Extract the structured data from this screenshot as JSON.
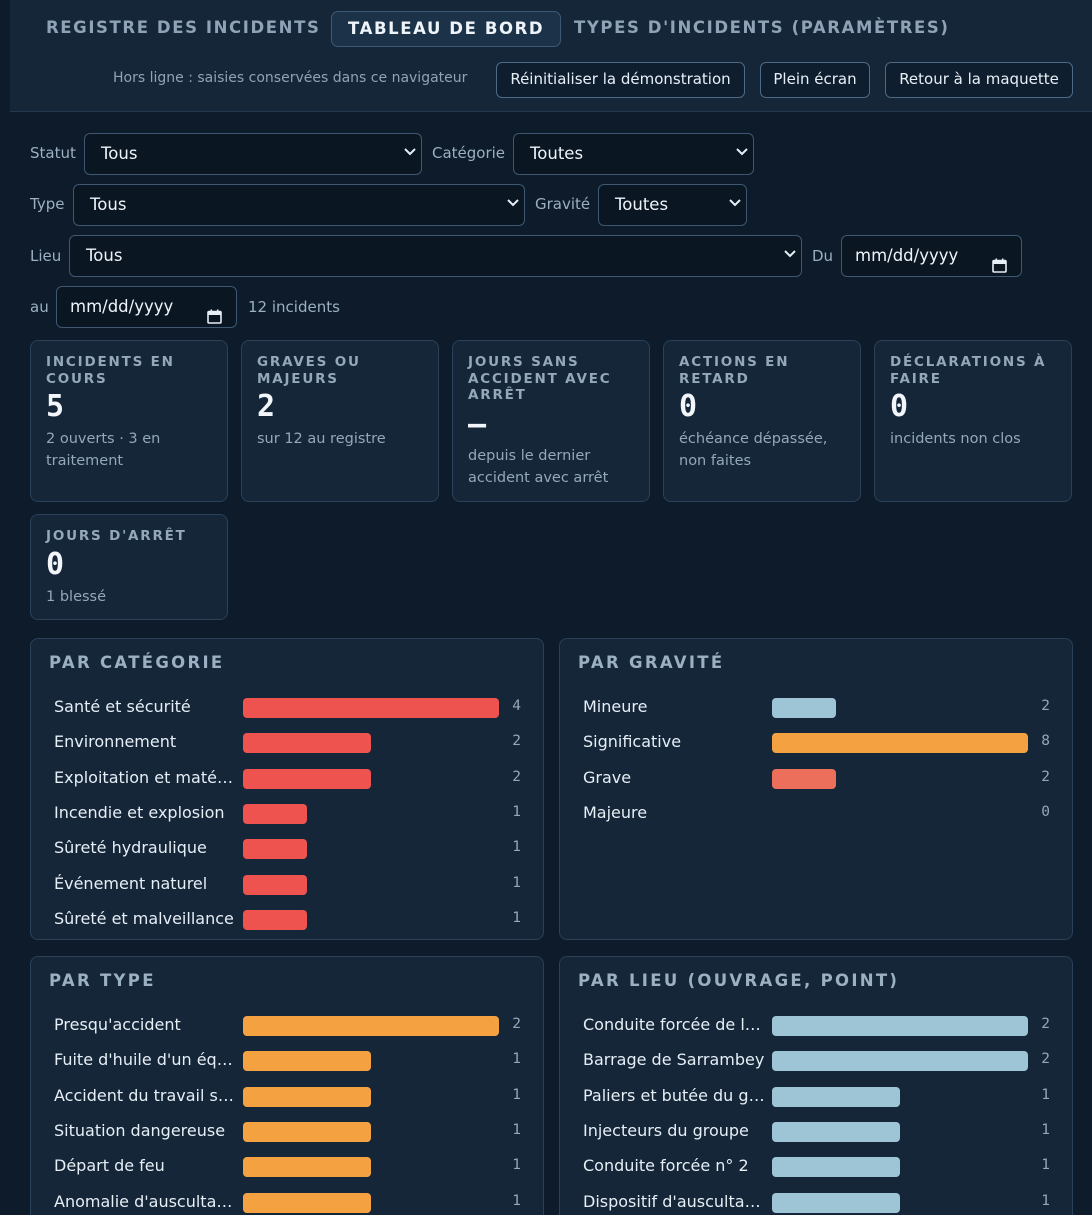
{
  "nav": {
    "tabs": [
      {
        "label": "REGISTRE DES INCIDENTS"
      },
      {
        "label": "TABLEAU DE BORD"
      },
      {
        "label": "TYPES D'INCIDENTS (PARAMÈTRES)"
      }
    ],
    "offline_note": "Hors ligne : saisies conservées dans ce navigateur",
    "buttons": {
      "reset": "Réinitialiser la démonstration",
      "fullscreen": "Plein écran",
      "back": "Retour à la maquette"
    }
  },
  "filters": {
    "status": {
      "label": "Statut",
      "value": "Tous"
    },
    "category": {
      "label": "Catégorie",
      "value": "Toutes"
    },
    "type": {
      "label": "Type",
      "value": "Tous"
    },
    "severity": {
      "label": "Gravité",
      "value": "Toutes"
    },
    "place": {
      "label": "Lieu",
      "value": "Tous"
    },
    "date_from": {
      "label": "Du",
      "value": "mm/dd/yyyy"
    },
    "date_to": {
      "label": "au",
      "value": "mm/dd/yyyy"
    },
    "count": "12 incidents"
  },
  "stats": [
    {
      "title": "INCIDENTS EN COURS",
      "value": "5",
      "sub": "2 ouverts · 3 en traitement"
    },
    {
      "title": "GRAVES OU MAJEURS",
      "value": "2",
      "sub": "sur 12 au registre"
    },
    {
      "title": "JOURS SANS ACCIDENT AVEC ARRÊT",
      "value": "—",
      "sub": "depuis le dernier accident avec arrêt"
    },
    {
      "title": "ACTIONS EN RETARD",
      "value": "0",
      "sub": "échéance dépassée, non faites"
    },
    {
      "title": "DÉCLARATIONS À FAIRE",
      "value": "0",
      "sub": "incidents non clos"
    },
    {
      "title": "JOURS D'ARRÊT",
      "value": "0",
      "sub": "1 blessé"
    }
  ],
  "panels": {
    "category": {
      "title": "PAR CATÉGORIE",
      "color": "#ef5350",
      "rows": [
        {
          "label": "Santé et sécurité",
          "value": 4
        },
        {
          "label": "Environnement",
          "value": 2
        },
        {
          "label": "Exploitation et matériel",
          "value": 2
        },
        {
          "label": "Incendie et explosion",
          "value": 1
        },
        {
          "label": "Sûreté hydraulique",
          "value": 1
        },
        {
          "label": "Événement naturel",
          "value": 1
        },
        {
          "label": "Sûreté et malveillance",
          "value": 1
        }
      ]
    },
    "severity": {
      "title": "PAR GRAVITÉ",
      "rows": [
        {
          "label": "Mineure",
          "value": 2,
          "color": "#9ec5d6"
        },
        {
          "label": "Significative",
          "value": 8,
          "color": "#f4a142"
        },
        {
          "label": "Grave",
          "value": 2,
          "color": "#ec6f5c"
        },
        {
          "label": "Majeure",
          "value": 0,
          "color": "#c0392b"
        }
      ]
    },
    "type": {
      "title": "PAR TYPE",
      "color": "#f4a142",
      "rows": [
        {
          "label": "Presqu'accident",
          "value": 2
        },
        {
          "label": "Fuite d'huile d'un équipement",
          "value": 1
        },
        {
          "label": "Accident du travail sans arrêt",
          "value": 1
        },
        {
          "label": "Situation dangereuse",
          "value": 1
        },
        {
          "label": "Départ de feu",
          "value": 1
        },
        {
          "label": "Anomalie d'auscultation",
          "value": 1
        }
      ]
    },
    "place": {
      "title": "PAR LIEU (OUVRAGE, POINT)",
      "color": "#9ec5d6",
      "rows": [
        {
          "label": "Conduite forcée de la centrale",
          "value": 2
        },
        {
          "label": "Barrage de Sarrambey",
          "value": 2
        },
        {
          "label": "Paliers et butée du groupe",
          "value": 1
        },
        {
          "label": "Injecteurs du groupe",
          "value": 1
        },
        {
          "label": "Conduite forcée n° 2",
          "value": 1
        },
        {
          "label": "Dispositif d'auscultation",
          "value": 1
        }
      ]
    }
  }
}
